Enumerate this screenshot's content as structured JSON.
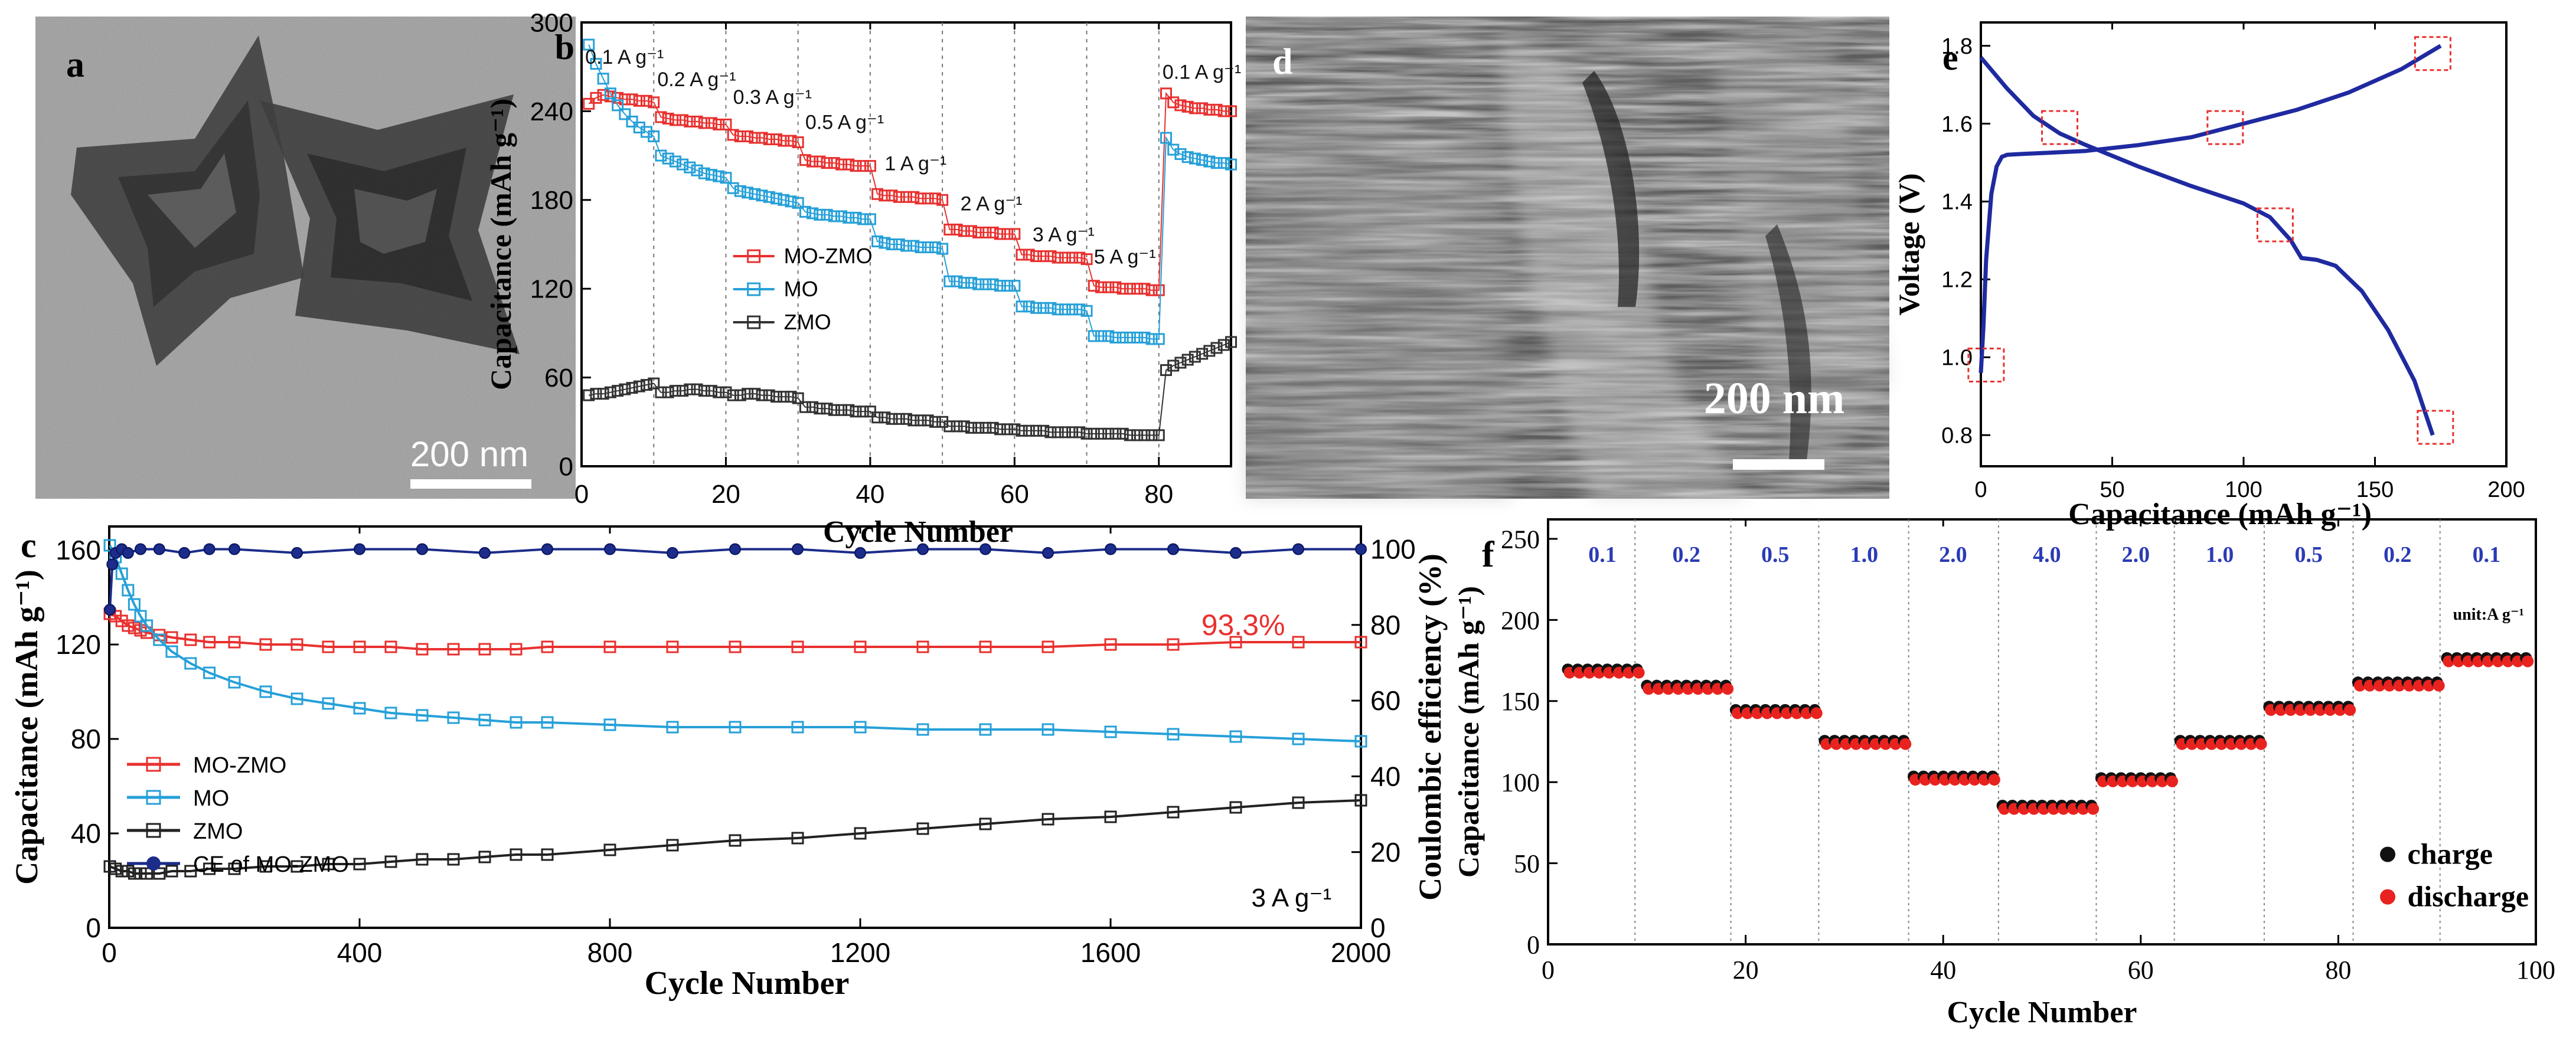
{
  "panel_a": {
    "label": "a",
    "scale_text": "200 nm"
  },
  "panel_d": {
    "label": "d",
    "scale_text": "200 nm"
  },
  "chart_data": [
    {
      "id": "b",
      "label": "b",
      "type": "scatter",
      "xlabel": "Cycle Number",
      "ylabel": "Capacitance (mAh g⁻¹)",
      "xlim": [
        0,
        90
      ],
      "ylim": [
        0,
        300
      ],
      "xticks": [
        0,
        20,
        40,
        60,
        80
      ],
      "yticks": [
        0,
        60,
        120,
        180,
        240,
        300
      ],
      "rate_labels": [
        {
          "text": "0.1 A g⁻¹",
          "x": 0.5,
          "y": 272
        },
        {
          "text": "0.2 A g⁻¹",
          "x": 10.5,
          "y": 257
        },
        {
          "text": "0.3 A g⁻¹",
          "x": 21,
          "y": 245
        },
        {
          "text": "0.5 A g⁻¹",
          "x": 31,
          "y": 228
        },
        {
          "text": "1 A g⁻¹",
          "x": 42,
          "y": 200
        },
        {
          "text": "2 A g⁻¹",
          "x": 52.5,
          "y": 173
        },
        {
          "text": "3 A g⁻¹",
          "x": 62.5,
          "y": 152
        },
        {
          "text": "5 A g⁻¹",
          "x": 71,
          "y": 137
        },
        {
          "text": "0.1 A g⁻¹",
          "x": 80.5,
          "y": 262
        }
      ],
      "series": [
        {
          "name": "MO-ZMO",
          "color": "#e8312f",
          "y": [
            245,
            249,
            251,
            250,
            249,
            248,
            248,
            247,
            247,
            246,
            236,
            235,
            234,
            234,
            233,
            233,
            232,
            232,
            231,
            231,
            224,
            223,
            223,
            222,
            222,
            221,
            221,
            220,
            220,
            219,
            207,
            206,
            206,
            205,
            205,
            204,
            204,
            203,
            203,
            203,
            184,
            183,
            183,
            182,
            182,
            182,
            181,
            181,
            181,
            180,
            160,
            160,
            159,
            159,
            158,
            158,
            158,
            157,
            157,
            157,
            143,
            143,
            142,
            142,
            142,
            141,
            141,
            141,
            141,
            140,
            122,
            121,
            121,
            121,
            120,
            120,
            120,
            120,
            119,
            119,
            252,
            246,
            244,
            243,
            242,
            242,
            241,
            241,
            240,
            240
          ]
        },
        {
          "name": "MO",
          "color": "#26a0d8",
          "y": [
            285,
            272,
            262,
            252,
            244,
            238,
            233,
            229,
            226,
            223,
            210,
            208,
            206,
            204,
            202,
            200,
            198,
            197,
            196,
            195,
            188,
            186,
            185,
            184,
            183,
            182,
            181,
            180,
            179,
            178,
            172,
            171,
            170,
            170,
            169,
            169,
            168,
            168,
            167,
            167,
            152,
            151,
            150,
            150,
            149,
            149,
            148,
            148,
            148,
            147,
            125,
            125,
            124,
            124,
            123,
            123,
            123,
            122,
            122,
            122,
            108,
            108,
            107,
            107,
            107,
            106,
            106,
            106,
            106,
            105,
            88,
            88,
            88,
            87,
            87,
            87,
            87,
            87,
            86,
            86,
            222,
            214,
            211,
            209,
            208,
            207,
            206,
            205,
            205,
            204
          ]
        },
        {
          "name": "ZMO",
          "color": "#333333",
          "y": [
            48,
            49,
            49,
            50,
            51,
            52,
            53,
            54,
            55,
            56,
            50,
            50,
            51,
            51,
            52,
            52,
            51,
            51,
            50,
            50,
            48,
            48,
            49,
            49,
            48,
            48,
            47,
            47,
            47,
            46,
            40,
            40,
            39,
            39,
            38,
            38,
            38,
            37,
            37,
            37,
            33,
            33,
            32,
            32,
            32,
            31,
            31,
            31,
            30,
            30,
            27,
            27,
            27,
            26,
            26,
            26,
            26,
            25,
            25,
            25,
            24,
            24,
            24,
            24,
            23,
            23,
            23,
            23,
            23,
            22,
            22,
            22,
            22,
            22,
            22,
            21,
            21,
            21,
            21,
            21,
            65,
            68,
            70,
            72,
            74,
            76,
            78,
            80,
            82,
            84
          ]
        }
      ]
    },
    {
      "id": "c",
      "label": "c",
      "type": "scatter",
      "xlabel": "Cycle Number",
      "ylabel": "Capacitance (mAh g⁻¹)",
      "y2label": "Coulombic efficiency (%)",
      "xlim": [
        0,
        2000
      ],
      "ylim": [
        0,
        170
      ],
      "y2lim": [
        0,
        106
      ],
      "xticks": [
        0,
        400,
        800,
        1200,
        1600,
        2000
      ],
      "yticks": [
        0,
        40,
        80,
        120,
        160
      ],
      "y2ticks": [
        0,
        20,
        40,
        60,
        80,
        100
      ],
      "annotation": "93.3%",
      "rate_note": "3 A g⁻¹",
      "series": [
        {
          "name": "MO-ZMO",
          "color": "#e8312f",
          "axis": "left",
          "x": [
            1,
            10,
            20,
            30,
            40,
            50,
            60,
            80,
            100,
            130,
            160,
            200,
            250,
            300,
            350,
            400,
            450,
            500,
            550,
            600,
            650,
            700,
            800,
            900,
            1000,
            1100,
            1200,
            1300,
            1400,
            1500,
            1600,
            1700,
            1800,
            1900,
            2000
          ],
          "y": [
            133,
            132,
            130,
            128,
            127,
            126,
            125,
            124,
            123,
            122,
            121,
            121,
            120,
            120,
            119,
            119,
            119,
            118,
            118,
            118,
            118,
            119,
            119,
            119,
            119,
            119,
            119,
            119,
            119,
            119,
            120,
            120,
            121,
            121,
            121
          ]
        },
        {
          "name": "MO",
          "color": "#26a0d8",
          "axis": "left",
          "x": [
            1,
            10,
            20,
            30,
            40,
            50,
            60,
            80,
            100,
            130,
            160,
            200,
            250,
            300,
            350,
            400,
            450,
            500,
            550,
            600,
            650,
            700,
            800,
            900,
            1000,
            1100,
            1200,
            1300,
            1400,
            1500,
            1600,
            1700,
            1800,
            1900,
            2000
          ],
          "y": [
            162,
            157,
            150,
            143,
            137,
            132,
            128,
            122,
            117,
            112,
            108,
            104,
            100,
            97,
            95,
            93,
            91,
            90,
            89,
            88,
            87,
            87,
            86,
            85,
            85,
            85,
            85,
            84,
            84,
            84,
            83,
            82,
            81,
            80,
            79
          ]
        },
        {
          "name": "ZMO",
          "color": "#222222",
          "axis": "left",
          "x": [
            1,
            10,
            20,
            30,
            40,
            50,
            60,
            80,
            100,
            130,
            160,
            200,
            250,
            300,
            350,
            400,
            450,
            500,
            550,
            600,
            650,
            700,
            800,
            900,
            1000,
            1100,
            1200,
            1300,
            1400,
            1500,
            1600,
            1700,
            1800,
            1900,
            2000
          ],
          "y": [
            26,
            25,
            24,
            24,
            23,
            23,
            23,
            23,
            24,
            24,
            25,
            25,
            26,
            26,
            27,
            27,
            28,
            29,
            29,
            30,
            31,
            31,
            33,
            35,
            37,
            38,
            40,
            42,
            44,
            46,
            47,
            49,
            51,
            53,
            54
          ]
        },
        {
          "name": "CE of MO-ZMO",
          "color": "#1c2c8a",
          "axis": "right",
          "x": [
            1,
            5,
            10,
            20,
            30,
            50,
            80,
            120,
            160,
            200,
            300,
            400,
            500,
            600,
            700,
            800,
            900,
            1000,
            1100,
            1200,
            1300,
            1400,
            1500,
            1600,
            1700,
            1800,
            1900,
            2000
          ],
          "y": [
            84,
            96,
            99,
            100,
            99,
            100,
            100,
            99,
            100,
            100,
            99,
            100,
            100,
            99,
            100,
            100,
            99,
            100,
            100,
            99,
            100,
            100,
            99,
            100,
            100,
            99,
            100,
            100
          ]
        }
      ]
    },
    {
      "id": "e",
      "label": "e",
      "type": "line",
      "xlabel": "Capacitance (mAh g⁻¹)",
      "ylabel": "Voltage (V)",
      "xlim": [
        0,
        200
      ],
      "ylim": [
        0.72,
        1.86
      ],
      "xticks": [
        0,
        50,
        100,
        150,
        200
      ],
      "yticks": [
        0.8,
        1.0,
        1.2,
        1.4,
        1.6,
        1.8
      ],
      "series": [
        {
          "name": "charge-curve",
          "color": "#1f2aa0",
          "x": [
            0,
            1,
            2,
            4,
            6,
            8,
            10,
            15,
            25,
            40,
            60,
            80,
            100,
            120,
            140,
            160,
            175
          ],
          "y": [
            0.96,
            1.08,
            1.25,
            1.42,
            1.49,
            1.515,
            1.52,
            1.522,
            1.525,
            1.53,
            1.545,
            1.565,
            1.6,
            1.635,
            1.68,
            1.74,
            1.8
          ]
        },
        {
          "name": "discharge-curve",
          "color": "#1f2aa0",
          "x": [
            0,
            5,
            10,
            20,
            30,
            40,
            60,
            80,
            100,
            110,
            118,
            122,
            128,
            135,
            145,
            155,
            165,
            172
          ],
          "y": [
            1.77,
            1.73,
            1.69,
            1.62,
            1.575,
            1.545,
            1.49,
            1.44,
            1.395,
            1.36,
            1.3,
            1.255,
            1.25,
            1.235,
            1.17,
            1.07,
            0.94,
            0.8
          ]
        }
      ],
      "markers": [
        {
          "x": 2,
          "y": 0.98
        },
        {
          "x": 30,
          "y": 1.59
        },
        {
          "x": 93,
          "y": 1.59
        },
        {
          "x": 112,
          "y": 1.34
        },
        {
          "x": 172,
          "y": 1.78
        },
        {
          "x": 173,
          "y": 0.82
        }
      ]
    },
    {
      "id": "f",
      "label": "f",
      "type": "scatter",
      "xlabel": "Cycle Number",
      "ylabel": "Capacitance (mAh g⁻¹)",
      "xlim": [
        0,
        100
      ],
      "ylim": [
        0,
        262
      ],
      "xticks": [
        0,
        20,
        40,
        60,
        80,
        100
      ],
      "yticks": [
        0,
        50,
        100,
        150,
        200,
        250
      ],
      "unit_note": "unit:A g⁻¹",
      "segments": [
        {
          "rate": "0.1",
          "start": 2,
          "end": 9,
          "value": 168
        },
        {
          "rate": "0.2",
          "start": 10,
          "end": 18,
          "value": 158
        },
        {
          "rate": "0.5",
          "start": 19,
          "end": 27,
          "value": 143
        },
        {
          "rate": "1.0",
          "start": 28,
          "end": 36,
          "value": 124
        },
        {
          "rate": "2.0",
          "start": 37,
          "end": 45,
          "value": 102
        },
        {
          "rate": "4.0",
          "start": 46,
          "end": 55,
          "value": 84
        },
        {
          "rate": "2.0",
          "start": 56,
          "end": 63,
          "value": 101
        },
        {
          "rate": "1.0",
          "start": 64,
          "end": 72,
          "value": 124
        },
        {
          "rate": "0.5",
          "start": 73,
          "end": 81,
          "value": 145
        },
        {
          "rate": "0.2",
          "start": 82,
          "end": 90,
          "value": 160
        },
        {
          "rate": "0.1",
          "start": 91,
          "end": 99,
          "value": 175
        }
      ],
      "dividers": [
        8.8,
        18.5,
        27.4,
        36.5,
        45.6,
        55.5,
        63.4,
        72.5,
        81.5,
        90.3
      ],
      "series": [
        {
          "name": "charge",
          "color": "#111111"
        },
        {
          "name": "discharge",
          "color": "#e8231f"
        }
      ]
    }
  ]
}
